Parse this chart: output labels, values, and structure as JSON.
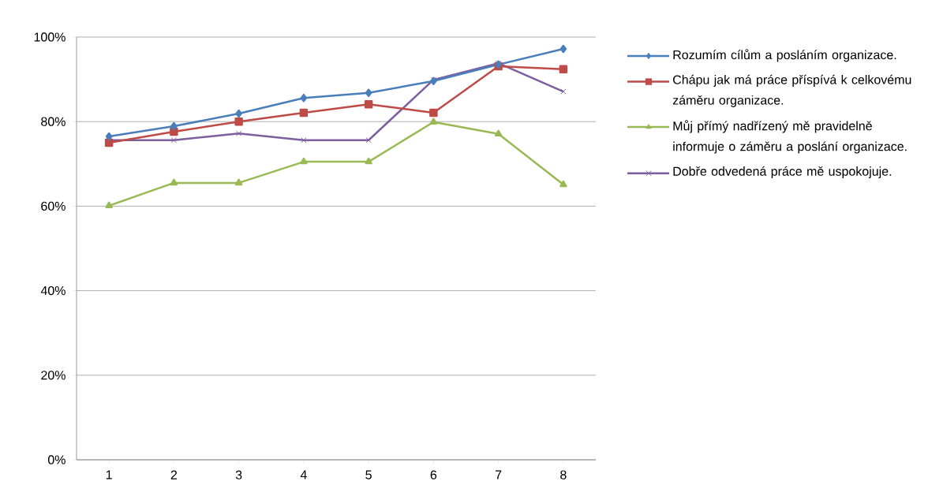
{
  "chart_data": {
    "type": "line",
    "categories": [
      "1",
      "2",
      "3",
      "4",
      "5",
      "6",
      "7",
      "8"
    ],
    "series": [
      {
        "name": "Rozumím cílům a posláním organizace.",
        "color": "#4a7ebb",
        "marker": "diamond",
        "values": [
          76.5,
          78.9,
          81.9,
          85.6,
          86.8,
          89.6,
          93.5,
          97.2
        ]
      },
      {
        "name": "Chápu jak má práce příspívá k celkovému záměru organizace.",
        "color": "#be4b48",
        "marker": "square",
        "values": [
          75.0,
          77.6,
          80.0,
          82.1,
          84.1,
          82.1,
          93.1,
          92.4
        ]
      },
      {
        "name": "Můj přímý nadřízený mě pravidelně informuje o záměru a poslání organizace.",
        "color": "#98b954",
        "marker": "triangle",
        "values": [
          60.1,
          65.5,
          65.5,
          70.5,
          70.5,
          79.9,
          77.1,
          65.1
        ]
      },
      {
        "name": "Dobře odvedená práce mě uspokojuje.",
        "color": "#7d5fa0",
        "marker": "cross",
        "values": [
          75.6,
          75.6,
          77.2,
          75.6,
          75.6,
          89.9,
          93.8,
          87.1
        ]
      }
    ],
    "ylim": [
      0,
      100
    ],
    "yticks": [
      {
        "value": 0,
        "label": "0%"
      },
      {
        "value": 20,
        "label": "20%"
      },
      {
        "value": 40,
        "label": "40%"
      },
      {
        "value": 60,
        "label": "60%"
      },
      {
        "value": 80,
        "label": "80%"
      },
      {
        "value": 100,
        "label": "100%"
      }
    ],
    "grid": "y",
    "legend": "right",
    "line_style": "solid"
  }
}
